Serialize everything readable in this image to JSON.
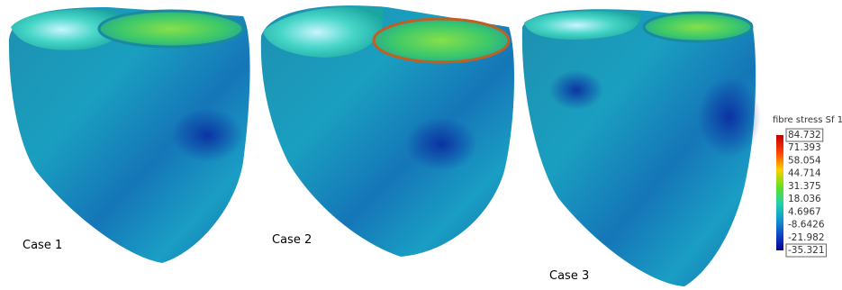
{
  "figure": {
    "cases": [
      "Case 1",
      "Case 2",
      "Case 3"
    ],
    "colorbar": {
      "title": "fibre stress Sf 1",
      "labels": [
        "84.732",
        "71.393",
        "58.054",
        "44.714",
        "31.375",
        "18.036",
        "4.6967",
        "-8.6426",
        "-21.982",
        "-35.321"
      ]
    }
  }
}
